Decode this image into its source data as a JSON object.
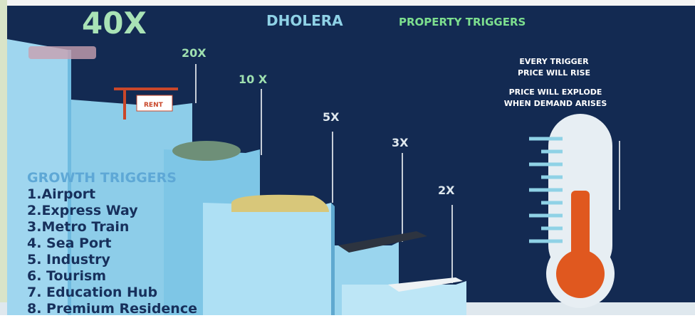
{
  "header": {
    "title_main": "DHOLERA",
    "title_sub": "PROPERTY TRIGGERS"
  },
  "steps": [
    {
      "label": "40X"
    },
    {
      "label": "20X"
    },
    {
      "label": "10 X"
    },
    {
      "label": "5X"
    },
    {
      "label": "3X"
    },
    {
      "label": "2X"
    }
  ],
  "growth": {
    "heading": "GROWTH TRIGGERS",
    "items": [
      "1.Airport",
      "2.Express Way",
      "3.Metro Train",
      "4. Sea Port",
      "5. Industry",
      "6. Tourism",
      "7. Education Hub",
      "8. Premium Residence"
    ]
  },
  "notes": [
    "EVERY TRIGGER",
    "PRICE WILL RISE",
    "PRICE WILL EXPLODE",
    "WHEN DEMAND ARISES"
  ],
  "sign": "RENT"
}
